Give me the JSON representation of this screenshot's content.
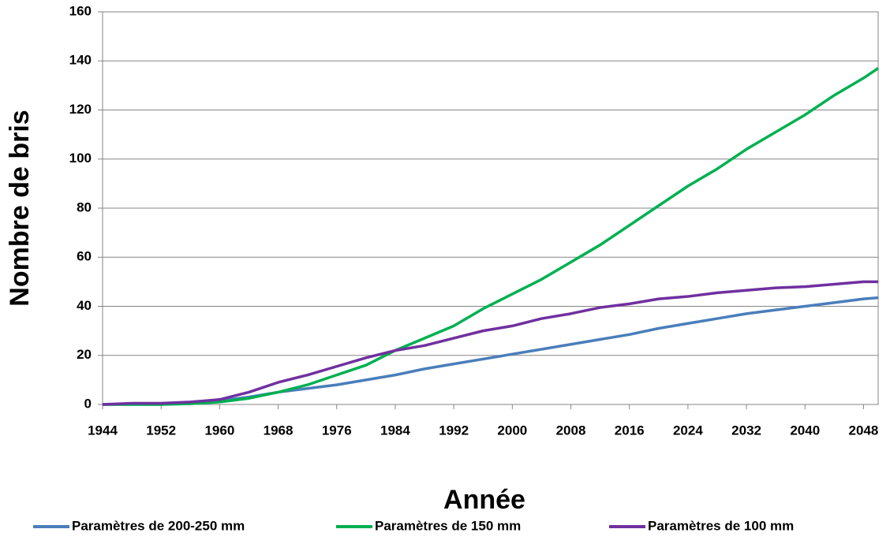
{
  "chart_data": {
    "type": "line",
    "x_label": "Année",
    "y_label": "Nombre de bris",
    "x": [
      1944,
      1948,
      1952,
      1956,
      1960,
      1964,
      1968,
      1972,
      1976,
      1980,
      1984,
      1988,
      1992,
      1996,
      2000,
      2004,
      2008,
      2012,
      2016,
      2020,
      2024,
      2028,
      2032,
      2036,
      2040,
      2044,
      2048,
      2050
    ],
    "series": [
      {
        "name": "Paramètres de 200-250 mm",
        "color": "#4a7ebb",
        "values": [
          0,
          0,
          0,
          0.5,
          1.5,
          3,
          5,
          6.5,
          8,
          10,
          12,
          14.5,
          16.5,
          18.5,
          20.5,
          22.5,
          24.5,
          26.5,
          28.5,
          31,
          33,
          35,
          37,
          38.5,
          40,
          41.5,
          43,
          43.5
        ]
      },
      {
        "name": "Paramètres de 150 mm",
        "color": "#00b050",
        "values": [
          0,
          0,
          0,
          0.3,
          1,
          2.5,
          5,
          8,
          12,
          16,
          22,
          27,
          32,
          39,
          45,
          51,
          58,
          65,
          73,
          81,
          89,
          96,
          104,
          111,
          118,
          126,
          133,
          137
        ]
      },
      {
        "name": "Paramètres de 100 mm",
        "color": "#7030a0",
        "values": [
          0,
          0.5,
          0.5,
          1,
          2,
          5,
          9,
          12,
          15.5,
          19,
          22,
          24,
          27,
          30,
          32,
          35,
          37,
          39.5,
          41,
          43,
          44,
          45.5,
          46.5,
          47.5,
          48,
          49,
          50,
          50
        ]
      }
    ],
    "xlim": [
      1944,
      2050
    ],
    "xticks": [
      1944,
      1952,
      1960,
      1968,
      1976,
      1984,
      1992,
      2000,
      2008,
      2016,
      2024,
      2032,
      2040,
      2048
    ],
    "ylim": [
      0,
      160
    ],
    "yticks": [
      0,
      20,
      40,
      60,
      80,
      100,
      120,
      140,
      160
    ],
    "grid": true,
    "legend": "bottom"
  }
}
